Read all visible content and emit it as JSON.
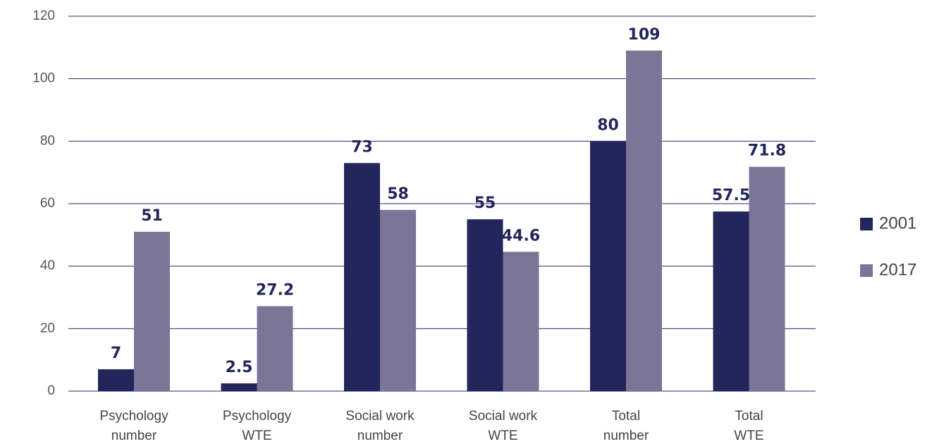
{
  "chart_data": {
    "type": "bar",
    "categories": [
      [
        "Psychology",
        "number"
      ],
      [
        "Psychology",
        "WTE"
      ],
      [
        "Social work",
        "number"
      ],
      [
        "Social work",
        "WTE"
      ],
      [
        "Total",
        "number"
      ],
      [
        "Total",
        "WTE"
      ]
    ],
    "series": [
      {
        "name": "2001",
        "color": "#22265a",
        "values": [
          7,
          2.5,
          73,
          55,
          80,
          57.5
        ]
      },
      {
        "name": "2017",
        "color": "#7b7598",
        "values": [
          51,
          27.2,
          58,
          44.6,
          109,
          71.8
        ]
      }
    ],
    "ylim": [
      0,
      120
    ],
    "yticks": [
      0,
      20,
      40,
      60,
      80,
      100,
      120
    ],
    "grid": true,
    "legend": "right"
  }
}
